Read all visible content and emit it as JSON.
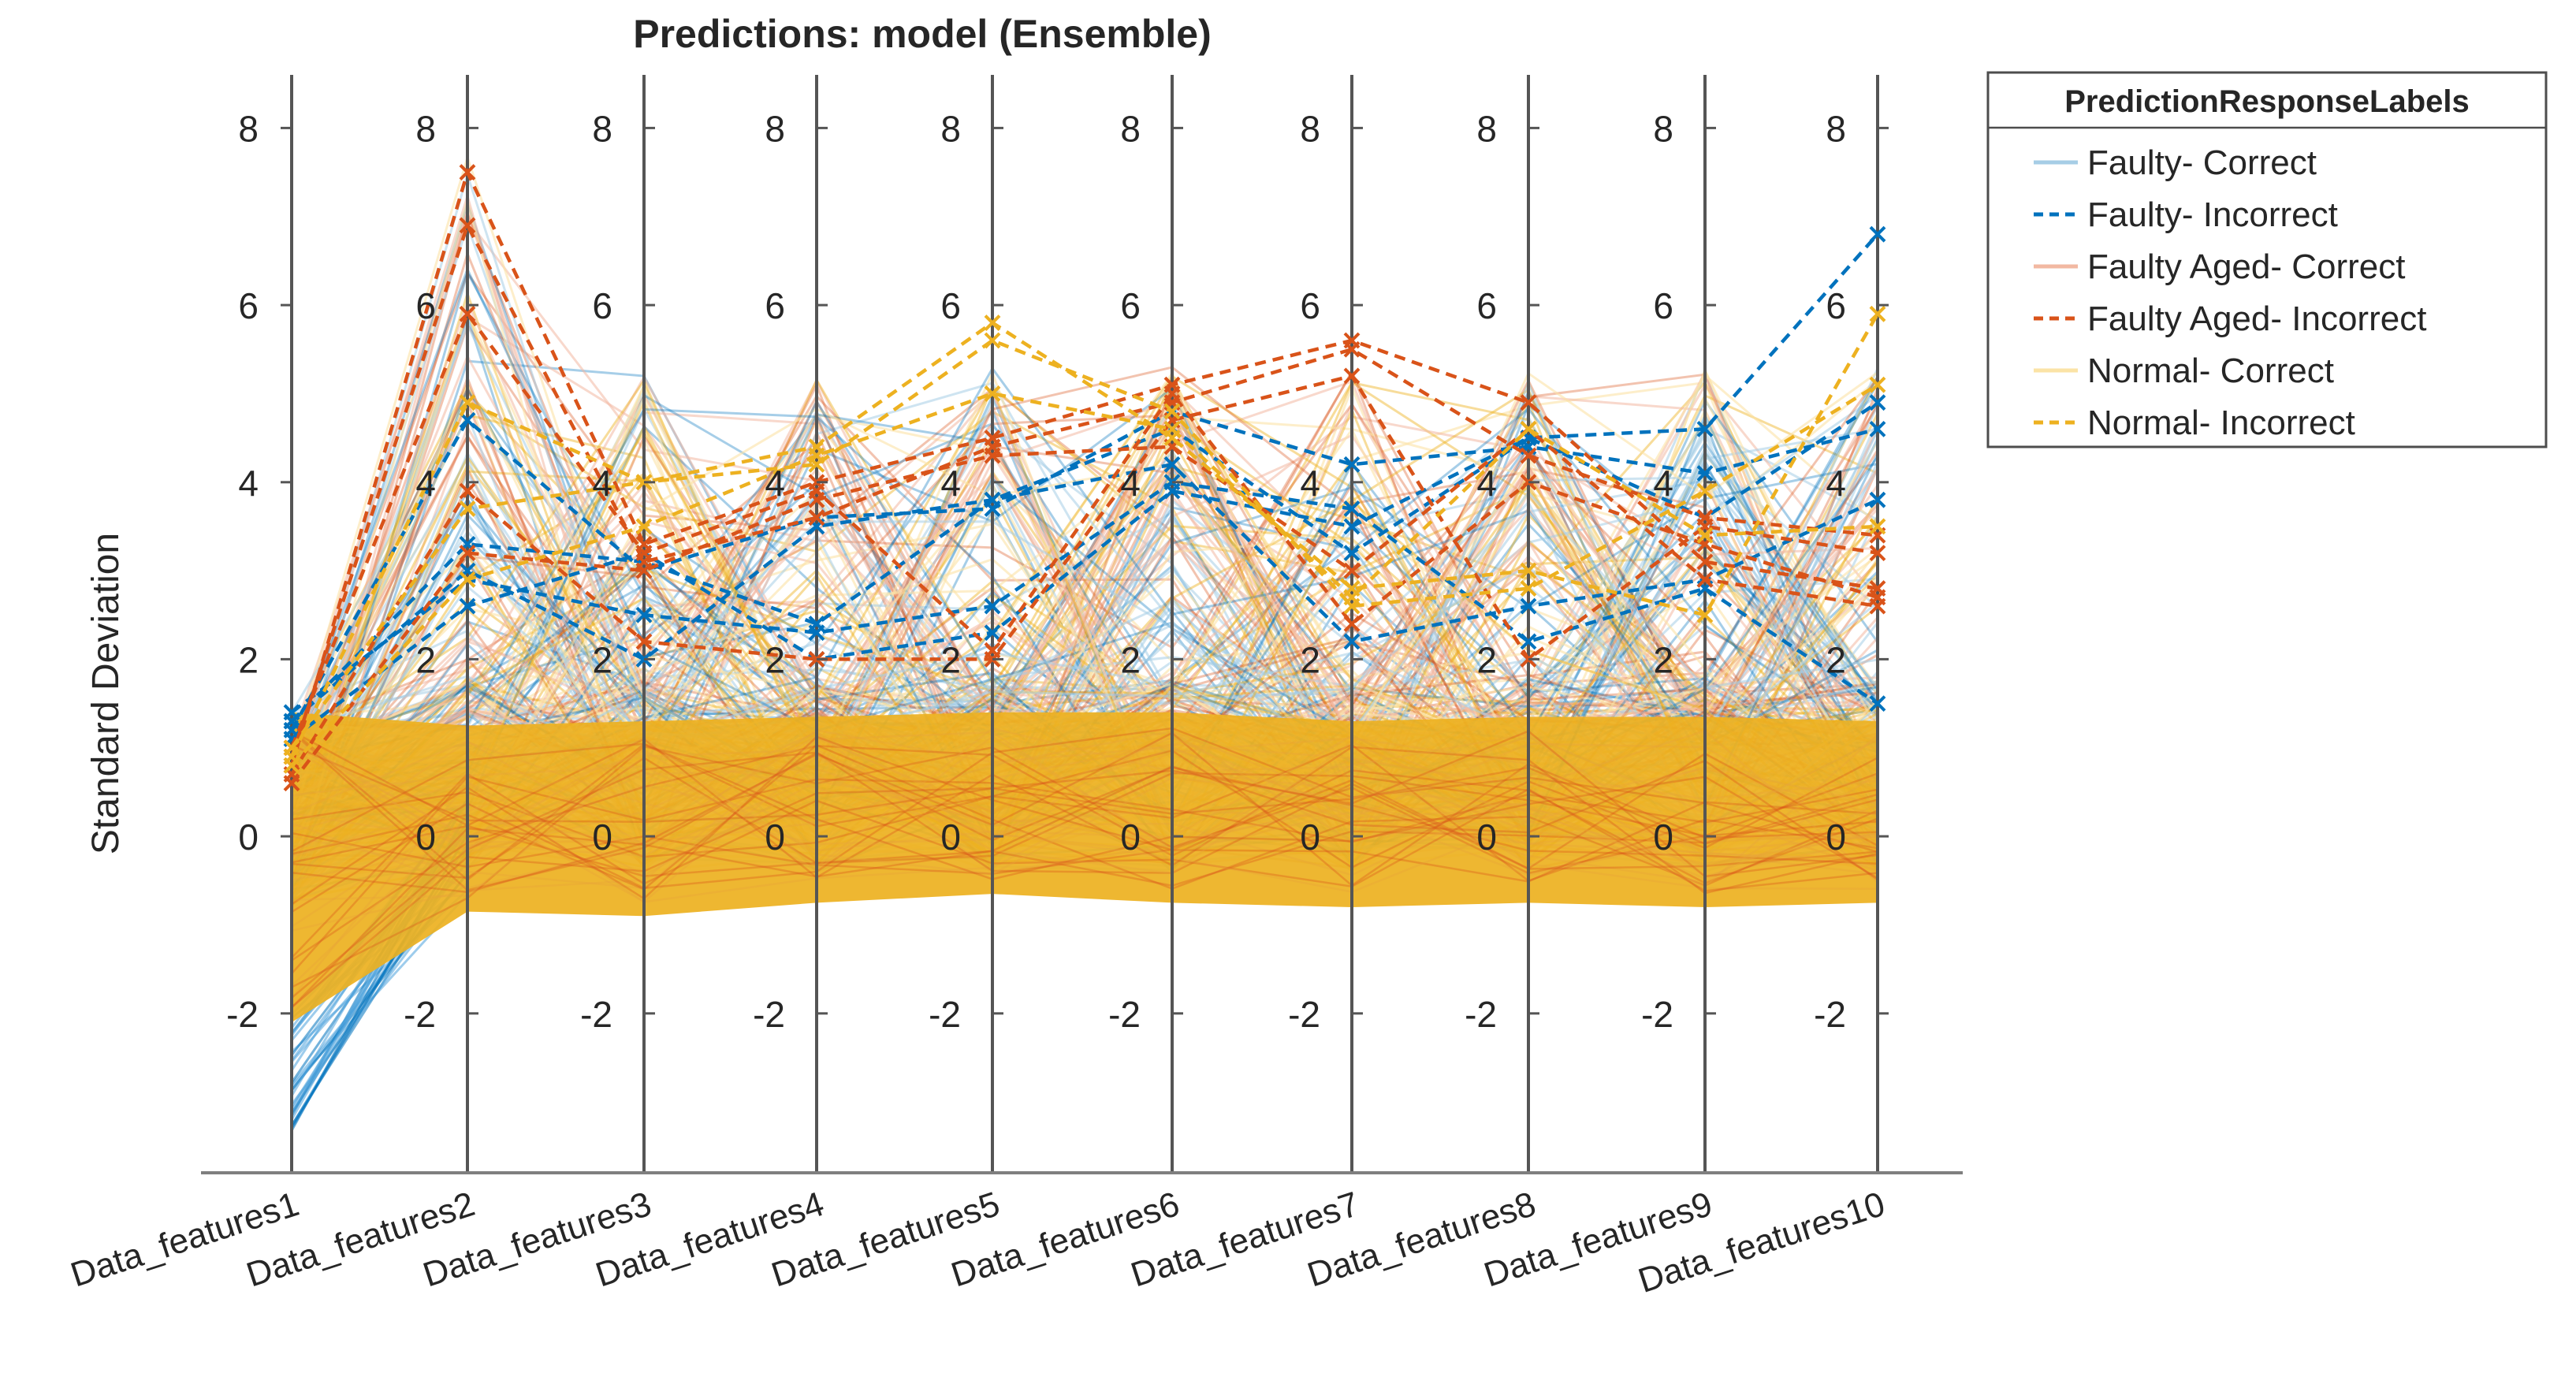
{
  "chart_data": {
    "type": "parallel-coordinates",
    "title": "Predictions: model (Ensemble)",
    "ylabel": "Standard Deviation",
    "xlabel": "",
    "ylim": [
      -3.8,
      8.6
    ],
    "ytick_values": [
      -2,
      0,
      2,
      4,
      6,
      8
    ],
    "ytick_labels": [
      "-2",
      "0",
      "2",
      "4",
      "6",
      "8"
    ],
    "categories": [
      "Data_features1",
      "Data_features2",
      "Data_features3",
      "Data_features4",
      "Data_features5",
      "Data_features6",
      "Data_features7",
      "Data_features8",
      "Data_features9",
      "Data_features10"
    ],
    "legend": {
      "title": "PredictionResponseLabels",
      "position": "outside-top-right",
      "entries": [
        {
          "label": "Faulty- Correct",
          "color": "#a6cde6",
          "style": "solid"
        },
        {
          "label": "Faulty- Incorrect",
          "color": "#0072bd",
          "style": "dashed"
        },
        {
          "label": "Faulty Aged- Correct",
          "color": "#f2b8a2",
          "style": "solid"
        },
        {
          "label": "Faulty Aged- Incorrect",
          "color": "#d95319",
          "style": "dashed"
        },
        {
          "label": "Normal- Correct",
          "color": "#fbe3a6",
          "style": "solid"
        },
        {
          "label": "Normal- Incorrect",
          "color": "#edb120",
          "style": "dashed"
        }
      ]
    },
    "series": [
      {
        "name": "Faulty- Incorrect",
        "color": "#0072bd",
        "dashed": true,
        "marker": "x",
        "values": [
          1.4,
          2.9,
          2.5,
          2.3,
          2.6,
          4.0,
          3.7,
          2.2,
          2.8,
          1.5
        ]
      },
      {
        "name": "Faulty- Incorrect",
        "color": "#0072bd",
        "dashed": true,
        "marker": "x",
        "values": [
          1.3,
          3.3,
          3.1,
          2.4,
          3.8,
          4.6,
          3.2,
          4.5,
          4.6,
          6.8
        ]
      },
      {
        "name": "Faulty- Incorrect",
        "color": "#0072bd",
        "dashed": true,
        "marker": "x",
        "values": [
          1.2,
          4.7,
          3.0,
          3.6,
          3.7,
          4.8,
          4.2,
          4.4,
          4.1,
          4.6
        ]
      },
      {
        "name": "Faulty- Incorrect",
        "color": "#0072bd",
        "dashed": true,
        "marker": "x",
        "values": [
          1.1,
          2.6,
          3.2,
          2.0,
          2.3,
          3.9,
          3.5,
          4.5,
          3.6,
          4.9
        ]
      },
      {
        "name": "Faulty- Incorrect",
        "color": "#0072bd",
        "dashed": true,
        "marker": "x",
        "values": [
          1.3,
          3.0,
          2.0,
          3.5,
          3.8,
          4.2,
          2.2,
          2.6,
          2.9,
          3.8
        ]
      },
      {
        "name": "Faulty Aged- Incorrect",
        "color": "#d95319",
        "dashed": true,
        "marker": "x",
        "values": [
          0.8,
          7.5,
          3.3,
          4.0,
          4.5,
          5.1,
          5.6,
          4.9,
          3.1,
          2.8
        ]
      },
      {
        "name": "Faulty Aged- Incorrect",
        "color": "#d95319",
        "dashed": true,
        "marker": "x",
        "values": [
          0.9,
          6.9,
          3.1,
          3.6,
          4.4,
          4.9,
          5.5,
          4.3,
          3.6,
          3.4
        ]
      },
      {
        "name": "Faulty Aged- Incorrect",
        "color": "#d95319",
        "dashed": true,
        "marker": "x",
        "values": [
          1.0,
          5.9,
          3.2,
          3.9,
          2.1,
          5.0,
          2.4,
          4.0,
          3.3,
          2.7
        ]
      },
      {
        "name": "Faulty Aged- Incorrect",
        "color": "#d95319",
        "dashed": true,
        "marker": "x",
        "values": [
          0.7,
          3.9,
          2.2,
          2.0,
          2.0,
          4.7,
          5.2,
          2.0,
          3.5,
          3.2
        ]
      },
      {
        "name": "Faulty Aged- Incorrect",
        "color": "#d95319",
        "dashed": true,
        "marker": "x",
        "values": [
          0.6,
          3.2,
          3.0,
          3.8,
          4.3,
          4.4,
          3.0,
          4.6,
          2.9,
          2.6
        ]
      },
      {
        "name": "Normal- Incorrect",
        "color": "#edb120",
        "dashed": true,
        "marker": "x",
        "values": [
          0.9,
          4.9,
          4.0,
          4.4,
          5.8,
          4.5,
          2.8,
          3.0,
          2.5,
          5.9
        ]
      },
      {
        "name": "Normal- Incorrect",
        "color": "#edb120",
        "dashed": true,
        "marker": "x",
        "values": [
          1.0,
          3.7,
          4.0,
          4.2,
          5.6,
          4.8,
          2.6,
          2.8,
          3.9,
          5.1
        ]
      },
      {
        "name": "Normal- Incorrect",
        "color": "#edb120",
        "dashed": true,
        "marker": "x",
        "values": [
          0.8,
          2.9,
          3.5,
          4.3,
          5.0,
          4.6,
          2.7,
          4.6,
          3.4,
          3.5
        ]
      }
    ]
  }
}
